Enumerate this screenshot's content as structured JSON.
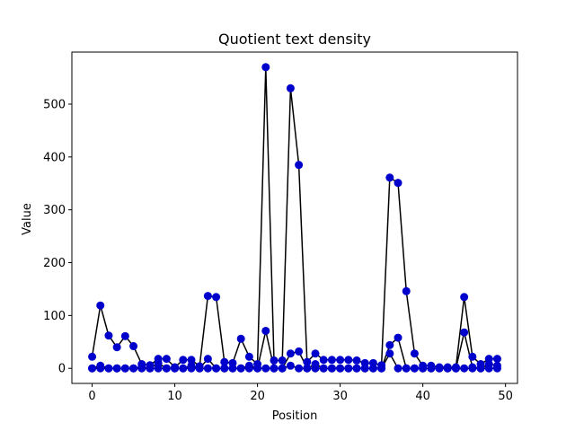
{
  "chart_data": {
    "type": "line",
    "title": "Quotient text density",
    "xlabel": "Position",
    "ylabel": "Value",
    "xlim": [
      -2.45,
      51.45
    ],
    "ylim": [
      -28.5,
      598.5
    ],
    "xticks": [
      0,
      10,
      20,
      30,
      40,
      50
    ],
    "yticks": [
      0,
      100,
      200,
      300,
      400,
      500
    ],
    "grid": false,
    "line_color": "#000000",
    "marker_color": "#0000cc",
    "series": [
      {
        "values": [
          [
            0,
            22
          ],
          [
            1,
            119
          ],
          [
            2,
            62
          ],
          [
            3,
            40
          ],
          [
            4,
            61
          ],
          [
            5,
            42
          ],
          [
            6,
            8
          ],
          [
            7,
            6
          ],
          [
            8,
            18
          ],
          [
            9,
            18
          ],
          [
            10,
            2
          ],
          [
            11,
            16
          ],
          [
            12,
            16
          ],
          [
            13,
            4
          ],
          [
            14,
            137
          ],
          [
            15,
            135
          ],
          [
            16,
            12
          ],
          [
            17,
            10
          ],
          [
            18,
            56
          ],
          [
            19,
            22
          ],
          [
            20,
            8
          ],
          [
            21,
            570
          ],
          [
            22,
            15
          ],
          [
            23,
            15
          ],
          [
            24,
            530
          ],
          [
            25,
            385
          ],
          [
            26,
            12
          ],
          [
            27,
            28
          ],
          [
            28,
            16
          ],
          [
            29,
            16
          ],
          [
            30,
            16
          ],
          [
            31,
            16
          ],
          [
            32,
            15
          ],
          [
            33,
            10
          ],
          [
            34,
            10
          ],
          [
            35,
            6
          ],
          [
            36,
            361
          ],
          [
            37,
            351
          ],
          [
            38,
            146
          ],
          [
            39,
            28
          ],
          [
            40,
            5
          ],
          [
            41,
            5
          ],
          [
            42,
            2
          ],
          [
            43,
            2
          ],
          [
            44,
            2
          ],
          [
            45,
            135
          ],
          [
            46,
            22
          ],
          [
            47,
            8
          ],
          [
            48,
            18
          ],
          [
            49,
            18
          ]
        ]
      },
      {
        "values": [
          [
            0,
            0
          ],
          [
            1,
            5
          ],
          [
            2,
            0
          ],
          [
            3,
            0
          ],
          [
            4,
            0
          ],
          [
            5,
            0
          ],
          [
            6,
            2
          ],
          [
            7,
            0
          ],
          [
            8,
            10
          ],
          [
            9,
            0
          ],
          [
            10,
            0
          ],
          [
            11,
            0
          ],
          [
            12,
            5
          ],
          [
            13,
            0
          ],
          [
            14,
            18
          ],
          [
            15,
            0
          ],
          [
            16,
            0
          ],
          [
            17,
            0
          ],
          [
            18,
            0
          ],
          [
            19,
            5
          ],
          [
            20,
            0
          ],
          [
            21,
            71
          ],
          [
            22,
            0
          ],
          [
            23,
            0
          ],
          [
            24,
            28
          ],
          [
            25,
            32
          ],
          [
            26,
            0
          ],
          [
            27,
            8
          ],
          [
            28,
            0
          ],
          [
            29,
            0
          ],
          [
            30,
            0
          ],
          [
            31,
            0
          ],
          [
            32,
            0
          ],
          [
            33,
            0
          ],
          [
            34,
            0
          ],
          [
            35,
            0
          ],
          [
            36,
            44
          ],
          [
            37,
            58
          ],
          [
            38,
            0
          ],
          [
            39,
            0
          ],
          [
            40,
            0
          ],
          [
            41,
            0
          ],
          [
            42,
            0
          ],
          [
            43,
            0
          ],
          [
            44,
            0
          ],
          [
            45,
            68
          ],
          [
            46,
            2
          ],
          [
            47,
            0
          ],
          [
            48,
            8
          ],
          [
            49,
            5
          ]
        ]
      },
      {
        "values": [
          [
            0,
            0
          ],
          [
            1,
            0
          ],
          [
            2,
            0
          ],
          [
            3,
            0
          ],
          [
            4,
            0
          ],
          [
            5,
            0
          ],
          [
            6,
            0
          ],
          [
            7,
            0
          ],
          [
            8,
            0
          ],
          [
            9,
            0
          ],
          [
            10,
            0
          ],
          [
            11,
            0
          ],
          [
            12,
            0
          ],
          [
            13,
            0
          ],
          [
            14,
            0
          ],
          [
            15,
            0
          ],
          [
            16,
            0
          ],
          [
            17,
            0
          ],
          [
            18,
            0
          ],
          [
            19,
            0
          ],
          [
            20,
            0
          ],
          [
            21,
            0
          ],
          [
            22,
            0
          ],
          [
            23,
            0
          ],
          [
            24,
            5
          ],
          [
            25,
            0
          ],
          [
            26,
            0
          ],
          [
            27,
            0
          ],
          [
            28,
            0
          ],
          [
            29,
            0
          ],
          [
            30,
            0
          ],
          [
            31,
            0
          ],
          [
            32,
            0
          ],
          [
            33,
            0
          ],
          [
            34,
            0
          ],
          [
            35,
            0
          ],
          [
            36,
            28
          ],
          [
            37,
            0
          ],
          [
            38,
            0
          ],
          [
            39,
            0
          ],
          [
            40,
            0
          ],
          [
            41,
            0
          ],
          [
            42,
            0
          ],
          [
            43,
            0
          ],
          [
            44,
            0
          ],
          [
            45,
            0
          ],
          [
            46,
            0
          ],
          [
            47,
            0
          ],
          [
            48,
            0
          ],
          [
            49,
            0
          ]
        ]
      }
    ]
  }
}
